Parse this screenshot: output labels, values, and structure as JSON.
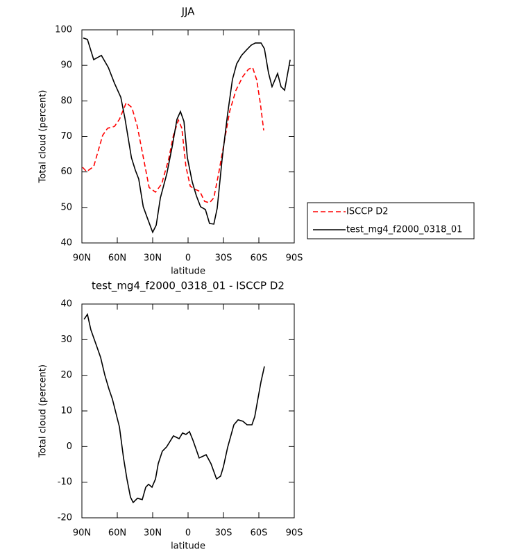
{
  "chart_data": [
    {
      "type": "line",
      "title": "JJA",
      "xlabel": "latitude",
      "ylabel": "Total cloud (percent)",
      "xlim": [
        90,
        -90
      ],
      "ylim": [
        40,
        100
      ],
      "xticks": [
        {
          "value": 90,
          "label": "90N"
        },
        {
          "value": 60,
          "label": "60N"
        },
        {
          "value": 30,
          "label": "30N"
        },
        0,
        {
          "value": -30,
          "label": "30S"
        },
        {
          "value": -60,
          "label": "60S"
        },
        {
          "value": -90,
          "label": "90S"
        }
      ],
      "yticks": [
        40,
        50,
        60,
        70,
        80,
        90,
        100
      ],
      "legend": "right",
      "series": [
        {
          "name": "ISCCP D2",
          "color": "#ff0000",
          "dashed": true,
          "x": [
            89.4,
            86,
            80,
            72.4,
            68.2,
            62.4,
            58.2,
            52.4,
            47.6,
            43,
            37.6,
            33,
            27.6,
            22.4,
            16.5,
            12.4,
            8.2,
            5.3,
            1.8,
            -1.8,
            -5.3,
            -10,
            -14,
            -18.2,
            -21.8,
            -25.9,
            -30.6,
            -35.3,
            -40.6,
            -46.5,
            -51.2,
            -54.7,
            -58.2,
            -61.2,
            -64.1
          ],
          "values": [
            61.3,
            60.1,
            61.5,
            70.3,
            72.3,
            72.8,
            74.8,
            79.5,
            78.1,
            72.8,
            63.5,
            55.6,
            54.3,
            56.6,
            63.5,
            70.3,
            74.6,
            72.3,
            61.5,
            56,
            55.2,
            54.5,
            51.7,
            51.3,
            52.7,
            59.5,
            68.3,
            77.1,
            83,
            86.9,
            88.9,
            89.4,
            85.9,
            79.5,
            71.7
          ]
        },
        {
          "name": "test_mg4_f2000_0318_01",
          "color": "#000000",
          "dashed": false,
          "x": [
            88.8,
            85.3,
            80,
            73.5,
            67.6,
            62.4,
            57,
            53.5,
            48,
            44.7,
            41.8,
            38,
            34.7,
            30,
            27,
            23.5,
            18,
            13.5,
            9.4,
            6.5,
            3.5,
            0.6,
            -3.5,
            -7,
            -10.6,
            -14.7,
            -18.2,
            -21.8,
            -24.7,
            -28.8,
            -33.5,
            -37.6,
            -41.2,
            -45.3,
            -49.4,
            -53.5,
            -57,
            -61.8,
            -64.7,
            -68.2,
            -71.2,
            -75.9,
            -78.8,
            -81.8,
            -86.5
          ],
          "values": [
            97.7,
            97.3,
            91.6,
            92.8,
            89.4,
            85,
            81,
            75,
            64,
            60.5,
            58,
            50.2,
            47.2,
            43,
            45,
            52.7,
            59.5,
            67,
            74.8,
            77,
            74.2,
            64,
            57.2,
            53.3,
            50.2,
            49.4,
            45.5,
            45.3,
            49.8,
            63.5,
            76.2,
            86,
            90.4,
            92.8,
            94.3,
            95.7,
            96.3,
            96.3,
            94.7,
            87.9,
            84,
            87.7,
            84,
            83,
            91.6
          ]
        }
      ]
    },
    {
      "type": "line",
      "title": "test_mg4_f2000_0318_01 - ISCCP D2",
      "xlabel": "latitude",
      "ylabel": "Total cloud (percent)",
      "xlim": [
        90,
        -90
      ],
      "ylim": [
        -20,
        40
      ],
      "xticks": [
        {
          "value": 90,
          "label": "90N"
        },
        {
          "value": 60,
          "label": "60N"
        },
        {
          "value": 30,
          "label": "30N"
        },
        0,
        {
          "value": -30,
          "label": "30S"
        },
        {
          "value": -60,
          "label": "60S"
        },
        {
          "value": -90,
          "label": "90S"
        }
      ],
      "yticks": [
        -20,
        -10,
        0,
        10,
        20,
        30,
        40
      ],
      "color": "#000000",
      "x": [
        88.2,
        85.3,
        82.4,
        77.6,
        74.1,
        70.6,
        67.1,
        64.1,
        58.2,
        54.7,
        51.8,
        48.8,
        46.5,
        42.9,
        38.8,
        35.9,
        33.5,
        30.6,
        27.6,
        25.3,
        21.8,
        18.2,
        12.4,
        7.6,
        4.7,
        1.8,
        -1.2,
        -4.1,
        -9.4,
        -15.3,
        -19.4,
        -24.1,
        -27.6,
        -30,
        -33.5,
        -38.8,
        -42.4,
        -46.5,
        -50,
        -54.1,
        -56.5,
        -58.8,
        -61.8,
        -64.7
      ],
      "values": [
        35.7,
        37.1,
        32.8,
        28.3,
        25,
        20.1,
        16.2,
        13.3,
        5.5,
        -3.2,
        -9.1,
        -14.2,
        -15.7,
        -14.5,
        -14.9,
        -11.4,
        -10.6,
        -11.4,
        -9.1,
        -4.8,
        -1.3,
        -0.1,
        3,
        2.2,
        3.8,
        3.4,
        4.2,
        1.8,
        -3.2,
        -2.3,
        -4.8,
        -9.1,
        -8.3,
        -5.6,
        -0.3,
        6.1,
        7.5,
        7.1,
        6.1,
        6.1,
        8.4,
        12.7,
        18.2,
        22.5
      ]
    }
  ]
}
